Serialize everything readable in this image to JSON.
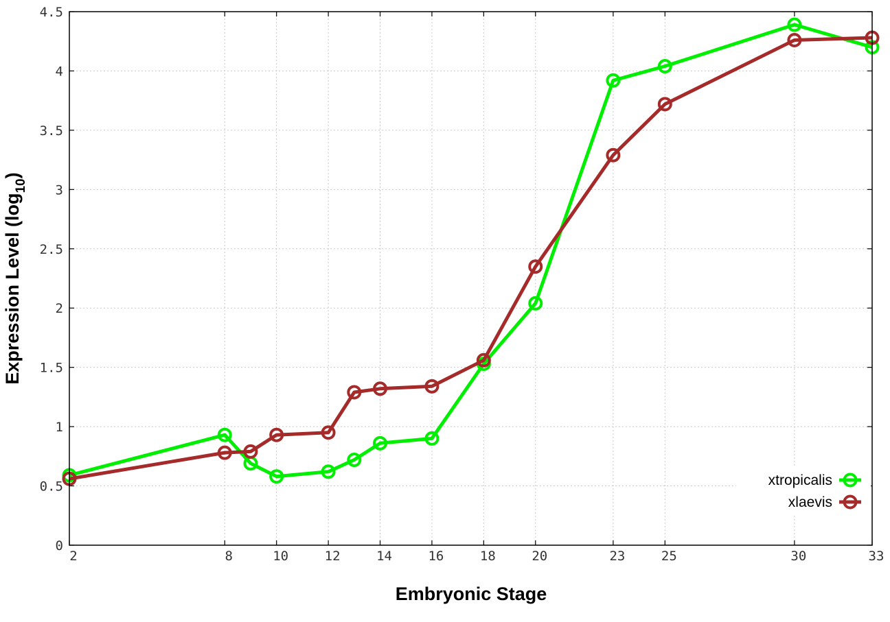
{
  "chart_data": {
    "type": "line",
    "xlabel": "Embryonic Stage",
    "ylabel_main": "Expression Level (log",
    "ylabel_sub": "10",
    "ylabel_close": ")",
    "xlim": [
      2,
      33
    ],
    "ylim": [
      0,
      4.5
    ],
    "x_ticks": [
      2,
      8,
      10,
      12,
      14,
      16,
      18,
      20,
      23,
      25,
      30,
      33
    ],
    "y_ticks": [
      "0",
      "0.5",
      "1",
      "1.5",
      "2",
      "2.5",
      "3",
      "3.5",
      "4",
      "4.5"
    ],
    "grid": true,
    "legend_position": "bottom-right",
    "x": [
      2,
      8,
      9,
      10,
      12,
      13,
      14,
      16,
      18,
      20,
      23,
      25,
      30,
      33
    ],
    "series": [
      {
        "name": "xtropicalis",
        "color": "#00ee00",
        "values": [
          0.59,
          0.93,
          0.69,
          0.58,
          0.62,
          0.72,
          0.86,
          0.9,
          1.53,
          2.04,
          3.92,
          4.04,
          4.39,
          4.2
        ]
      },
      {
        "name": "xlaevis",
        "color": "#a52a2a",
        "values": [
          0.56,
          0.78,
          0.79,
          0.93,
          0.95,
          1.29,
          1.32,
          1.34,
          1.56,
          2.35,
          3.29,
          3.72,
          4.26,
          4.28
        ]
      }
    ]
  }
}
